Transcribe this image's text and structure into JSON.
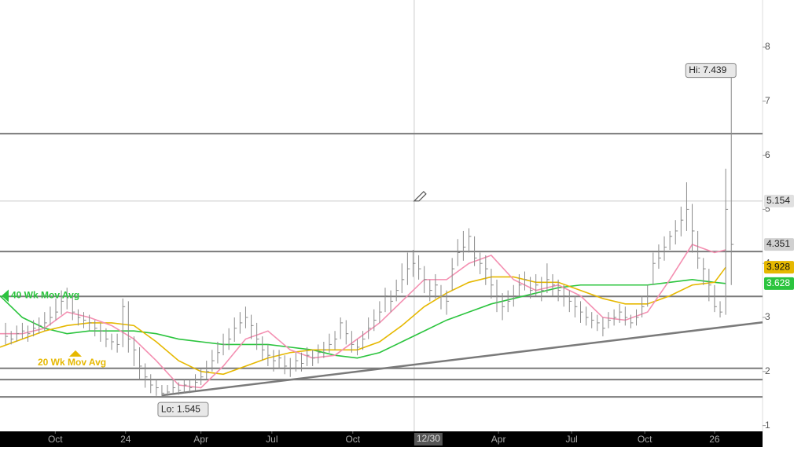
{
  "chart_data": {
    "type": "ohlc",
    "color": "#8a8a8a",
    "x": [
      1,
      2,
      3,
      4,
      5,
      6,
      7,
      8,
      9,
      10,
      11,
      12,
      13,
      14,
      15,
      16,
      17,
      18,
      19,
      20,
      21,
      22,
      23,
      24,
      25,
      26,
      27,
      28,
      29,
      30,
      31,
      32,
      33,
      34,
      35,
      36,
      37,
      38,
      39,
      40,
      41,
      42,
      43,
      44,
      45,
      46,
      47,
      48,
      49,
      50,
      51,
      52,
      53,
      54,
      55,
      56,
      57,
      58,
      59,
      60,
      61,
      62,
      63,
      64,
      65,
      66,
      67,
      68,
      69,
      70,
      71,
      72,
      73,
      74,
      75,
      76,
      77,
      78,
      79,
      80,
      81,
      82,
      83,
      84,
      85,
      86,
      87,
      88,
      89,
      90,
      91,
      92,
      93,
      94,
      95,
      96,
      97,
      98,
      99,
      100,
      101,
      102,
      103,
      104,
      105,
      106,
      107,
      108,
      109,
      110,
      111,
      112,
      113,
      114,
      115,
      116,
      117,
      118,
      119,
      120,
      121,
      122,
      123,
      124,
      125,
      126,
      127,
      128,
      129,
      130,
      131
    ],
    "high": [
      2.9,
      2.75,
      2.85,
      2.9,
      2.85,
      2.95,
      3.0,
      3.1,
      3.2,
      3.35,
      3.5,
      3.55,
      3.4,
      3.15,
      3.1,
      3.05,
      2.95,
      2.9,
      2.8,
      2.7,
      2.7,
      3.35,
      3.3,
      2.65,
      2.45,
      2.15,
      1.95,
      1.85,
      1.75,
      1.75,
      1.85,
      1.8,
      1.85,
      1.85,
      1.95,
      2.05,
      2.2,
      2.4,
      2.55,
      2.7,
      2.8,
      3.0,
      3.1,
      3.2,
      3.05,
      2.9,
      2.65,
      2.5,
      2.4,
      2.4,
      2.3,
      2.25,
      2.35,
      2.35,
      2.45,
      2.4,
      2.5,
      2.55,
      2.7,
      2.75,
      3.0,
      2.95,
      2.75,
      2.6,
      2.75,
      3.0,
      3.15,
      3.3,
      3.55,
      3.5,
      3.7,
      4.0,
      4.2,
      4.25,
      4.15,
      3.95,
      3.7,
      3.8,
      3.6,
      3.5,
      4.1,
      4.45,
      4.6,
      4.65,
      4.5,
      4.2,
      4.15,
      3.9,
      3.7,
      3.45,
      3.5,
      3.6,
      3.8,
      3.85,
      3.75,
      3.8,
      3.75,
      4.0,
      3.8,
      3.7,
      3.6,
      3.5,
      3.4,
      3.3,
      3.2,
      3.1,
      3.05,
      3.0,
      3.1,
      3.15,
      3.25,
      3.2,
      3.05,
      3.15,
      3.4,
      3.6,
      4.2,
      4.35,
      4.5,
      4.6,
      4.8,
      5.05,
      5.5,
      5.1,
      4.6,
      4.1,
      3.9,
      3.6,
      3.3,
      5.75,
      7.439
    ],
    "low": [
      2.5,
      2.5,
      2.55,
      2.6,
      2.55,
      2.65,
      2.7,
      2.75,
      2.85,
      2.95,
      3.05,
      3.15,
      2.95,
      2.85,
      2.8,
      2.75,
      2.65,
      2.55,
      2.45,
      2.4,
      2.35,
      2.45,
      2.35,
      2.1,
      1.85,
      1.7,
      1.6,
      1.55,
      1.545,
      1.55,
      1.58,
      1.57,
      1.6,
      1.6,
      1.65,
      1.75,
      1.85,
      2.0,
      2.15,
      2.3,
      2.4,
      2.55,
      2.7,
      2.8,
      2.6,
      2.4,
      2.2,
      2.1,
      2.0,
      2.05,
      1.95,
      1.9,
      2.0,
      2.0,
      2.1,
      2.1,
      2.15,
      2.25,
      2.35,
      2.4,
      2.6,
      2.5,
      2.35,
      2.3,
      2.4,
      2.6,
      2.75,
      2.9,
      3.1,
      3.1,
      3.3,
      3.45,
      3.6,
      3.75,
      3.7,
      3.45,
      3.3,
      3.35,
      3.15,
      3.05,
      3.5,
      3.95,
      4.05,
      4.2,
      3.95,
      3.8,
      3.6,
      3.35,
      3.1,
      2.95,
      3.1,
      3.2,
      3.4,
      3.5,
      3.35,
      3.4,
      3.3,
      3.45,
      3.4,
      3.3,
      3.2,
      3.1,
      3.0,
      2.9,
      2.85,
      2.8,
      2.75,
      2.65,
      2.8,
      2.85,
      2.9,
      2.85,
      2.8,
      2.85,
      3.0,
      3.2,
      3.6,
      3.9,
      4.05,
      4.25,
      4.35,
      4.5,
      4.6,
      4.2,
      3.9,
      3.6,
      3.3,
      3.1,
      3.0,
      3.05,
      3.6
    ],
    "close": [
      2.65,
      2.6,
      2.7,
      2.75,
      2.7,
      2.8,
      2.85,
      2.9,
      3.0,
      3.1,
      3.3,
      3.4,
      3.1,
      3.0,
      2.95,
      2.9,
      2.8,
      2.75,
      2.6,
      2.55,
      2.5,
      3.2,
      2.6,
      2.4,
      2.1,
      1.9,
      1.75,
      1.7,
      1.6,
      1.62,
      1.7,
      1.65,
      1.75,
      1.7,
      1.8,
      1.9,
      2.0,
      2.2,
      2.35,
      2.5,
      2.6,
      2.8,
      2.9,
      3.0,
      2.85,
      2.6,
      2.4,
      2.3,
      2.2,
      2.25,
      2.1,
      2.05,
      2.2,
      2.15,
      2.3,
      2.25,
      2.35,
      2.4,
      2.5,
      2.6,
      2.9,
      2.7,
      2.5,
      2.45,
      2.6,
      2.8,
      2.95,
      3.1,
      3.4,
      3.3,
      3.5,
      3.7,
      3.9,
      4.0,
      3.9,
      3.7,
      3.5,
      3.6,
      3.4,
      3.3,
      3.9,
      4.2,
      4.3,
      4.5,
      4.1,
      4.0,
      3.9,
      3.6,
      3.4,
      3.2,
      3.3,
      3.4,
      3.6,
      3.7,
      3.5,
      3.6,
      3.5,
      3.7,
      3.6,
      3.5,
      3.4,
      3.3,
      3.2,
      3.1,
      3.0,
      2.95,
      2.9,
      2.8,
      2.95,
      3.0,
      3.1,
      3.0,
      2.9,
      3.0,
      3.2,
      3.4,
      4.0,
      4.1,
      4.3,
      4.5,
      4.6,
      4.8,
      5.0,
      4.6,
      4.1,
      3.9,
      3.6,
      3.2,
      3.1,
      5.0,
      4.351
    ],
    "overlays": [
      {
        "name": "40 Wk Mov Avg",
        "color": "#2bc43e",
        "x": [
          0,
          4,
          8,
          12,
          16,
          20,
          24,
          28,
          32,
          36,
          40,
          44,
          48,
          52,
          56,
          60,
          64,
          68,
          72,
          76,
          80,
          84,
          88,
          92,
          96,
          100,
          104,
          108,
          112,
          116,
          120,
          124,
          128,
          130
        ],
        "values": [
          3.4,
          3.0,
          2.8,
          2.7,
          2.75,
          2.75,
          2.75,
          2.7,
          2.6,
          2.55,
          2.5,
          2.5,
          2.5,
          2.45,
          2.4,
          2.3,
          2.25,
          2.35,
          2.55,
          2.75,
          2.95,
          3.1,
          3.25,
          3.35,
          3.45,
          3.55,
          3.6,
          3.6,
          3.6,
          3.6,
          3.65,
          3.7,
          3.65,
          3.628
        ]
      },
      {
        "name": "20 Wk Mov Avg",
        "color": "#e6b800",
        "x": [
          0,
          4,
          8,
          12,
          16,
          20,
          24,
          28,
          32,
          36,
          40,
          44,
          48,
          52,
          56,
          60,
          64,
          68,
          72,
          76,
          80,
          84,
          88,
          92,
          96,
          100,
          104,
          108,
          112,
          116,
          120,
          124,
          128,
          130
        ],
        "values": [
          2.45,
          2.6,
          2.75,
          2.85,
          2.9,
          2.9,
          2.85,
          2.55,
          2.2,
          2.0,
          1.95,
          2.1,
          2.25,
          2.35,
          2.4,
          2.4,
          2.4,
          2.55,
          2.85,
          3.2,
          3.45,
          3.65,
          3.75,
          3.75,
          3.65,
          3.65,
          3.5,
          3.35,
          3.25,
          3.25,
          3.4,
          3.6,
          3.65,
          3.928
        ]
      },
      {
        "color": "#f48fb1",
        "x": [
          0,
          4,
          8,
          12,
          16,
          20,
          24,
          28,
          32,
          36,
          40,
          44,
          48,
          52,
          56,
          60,
          64,
          68,
          72,
          76,
          80,
          84,
          88,
          92,
          96,
          100,
          104,
          108,
          112,
          116,
          120,
          124,
          128,
          130
        ],
        "values": [
          2.7,
          2.7,
          2.8,
          3.1,
          3.0,
          2.85,
          2.6,
          2.2,
          1.75,
          1.7,
          2.1,
          2.6,
          2.75,
          2.4,
          2.25,
          2.3,
          2.6,
          2.9,
          3.3,
          3.7,
          3.7,
          4.0,
          4.15,
          3.7,
          3.5,
          3.6,
          3.4,
          3.0,
          2.95,
          3.1,
          3.7,
          4.35,
          4.2,
          4.25
        ]
      }
    ],
    "levels": [
      6.4,
      4.22,
      3.39,
      2.06,
      1.85,
      1.53
    ],
    "level_color": "#7a7a7a",
    "trendline": {
      "x": [
        29,
        136.6
      ],
      "y": [
        1.56,
        2.91
      ]
    },
    "crosshair": {
      "x": 74.2,
      "x_label": "12/30",
      "y": 5.154
    },
    "annotations": [
      {
        "text": "Hi: 7.439",
        "x": 131,
        "y": 7.439
      },
      {
        "text": "Lo: 1.545",
        "x": 29,
        "y": 1.545
      }
    ],
    "xlim": [
      0,
      136.6
    ],
    "ylim": [
      0.893,
      8.872
    ],
    "xticks": [
      {
        "value": 9.9,
        "label": "Oct"
      },
      {
        "value": 22.5,
        "label": "24"
      },
      {
        "value": 36,
        "label": "Apr"
      },
      {
        "value": 48.7,
        "label": "Jul"
      },
      {
        "value": 63.2,
        "label": "Oct"
      },
      {
        "value": 89.3,
        "label": "Apr"
      },
      {
        "value": 102.4,
        "label": "Jul"
      },
      {
        "value": 115.5,
        "label": "Oct"
      },
      {
        "value": 128,
        "label": "26"
      }
    ],
    "yticks": [
      1,
      2,
      3,
      4,
      5,
      6,
      7,
      8
    ]
  }
}
